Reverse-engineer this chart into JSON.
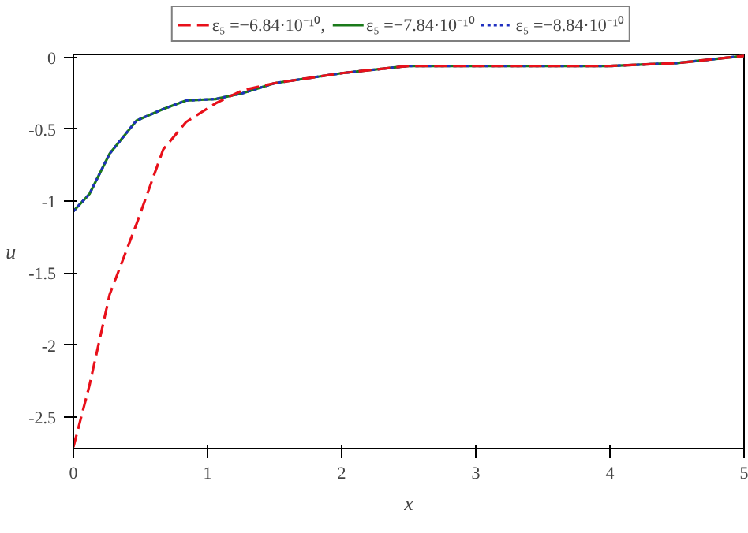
{
  "chart_data": {
    "type": "line",
    "xlabel": "x",
    "ylabel": "u",
    "xlim": [
      0,
      5
    ],
    "ylim": [
      -2.72,
      0.02
    ],
    "xticks": [
      0,
      1,
      2,
      3,
      4,
      5
    ],
    "yticks": [
      0,
      -0.5,
      -1,
      -1.5,
      -2,
      -2.5
    ],
    "grid": false,
    "legend": "top",
    "marker": "none",
    "x": [
      0,
      0.12,
      0.27,
      0.47,
      0.67,
      0.84,
      1.06,
      1.26,
      1.5,
      2,
      2.5,
      3,
      3.5,
      4,
      4.5,
      5
    ],
    "series": [
      {
        "name": "ε₅ =−6.84·10⁻¹⁰,",
        "color": "#e8101a",
        "line_style": "dashed",
        "values": [
          -2.71,
          -2.28,
          -1.65,
          -1.16,
          -0.64,
          -0.45,
          -0.32,
          -0.23,
          -0.18,
          -0.11,
          -0.06,
          -0.06,
          -0.06,
          -0.06,
          -0.04,
          0.01
        ]
      },
      {
        "name": "ε₅ =−7.84·10⁻¹⁰",
        "color": "#1a7a1a",
        "line_style": "solid",
        "values": [
          -1.07,
          -0.95,
          -0.67,
          -0.44,
          -0.36,
          -0.3,
          -0.29,
          -0.25,
          -0.18,
          -0.11,
          -0.06,
          -0.06,
          -0.06,
          -0.06,
          -0.04,
          0.01
        ]
      },
      {
        "name": "ε₅ =−8.84·10⁻¹⁰",
        "color": "#2030c0",
        "line_style": "dotted",
        "values": [
          -1.07,
          -0.95,
          -0.67,
          -0.44,
          -0.36,
          -0.3,
          -0.29,
          -0.25,
          -0.18,
          -0.11,
          -0.06,
          -0.06,
          -0.06,
          -0.06,
          -0.04,
          0.01
        ]
      }
    ]
  }
}
